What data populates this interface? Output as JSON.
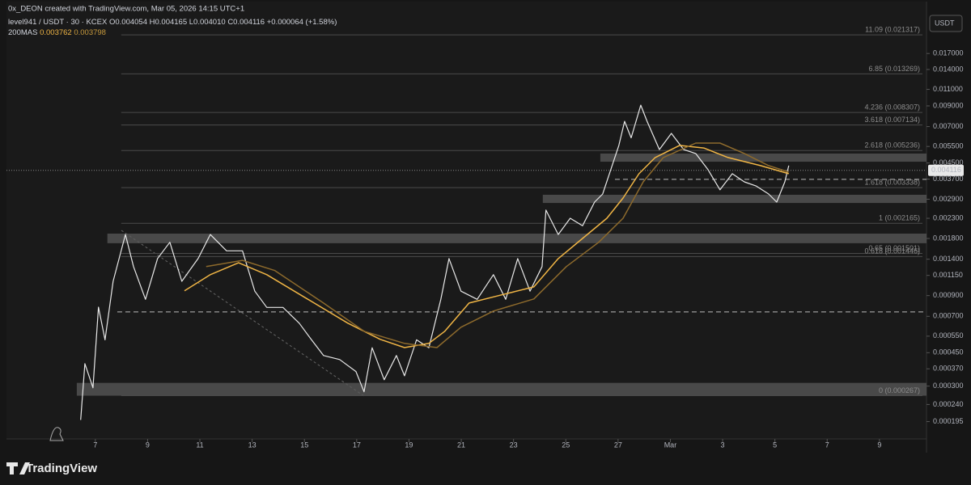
{
  "header": {
    "credit": "0x_DEON created with TradingView.com, Mar 05, 2026 14:15 UTC+1"
  },
  "legend": {
    "symbol": "level941 / USDT · 30 · KCEX",
    "ohlc": [
      "O0.004054",
      "H0.004165",
      "L0.004010",
      "C0.004116",
      "+0.000064 (+1.58%)"
    ],
    "indicator": "200MAS",
    "indicator_values": [
      "0.003762",
      "0.003798"
    ]
  },
  "chart_data": {
    "type": "line",
    "log_scale": true,
    "currency": "USDT",
    "xlim": [
      -3.4,
      31.8
    ],
    "ylim": [
      0.000158,
      0.0295
    ],
    "xticks": [
      {
        "value": 0,
        "label": "7"
      },
      {
        "value": 2,
        "label": "9"
      },
      {
        "value": 4,
        "label": "11"
      },
      {
        "value": 6,
        "label": "13"
      },
      {
        "value": 8,
        "label": "15"
      },
      {
        "value": 10,
        "label": "17"
      },
      {
        "value": 12,
        "label": "19"
      },
      {
        "value": 14,
        "label": "21"
      },
      {
        "value": 16,
        "label": "23"
      },
      {
        "value": 18,
        "label": "25"
      },
      {
        "value": 20,
        "label": "27"
      },
      {
        "value": 22,
        "label": "Mar"
      },
      {
        "value": 24,
        "label": "3"
      },
      {
        "value": 26,
        "label": "5"
      },
      {
        "value": 28,
        "label": "7"
      },
      {
        "value": 30,
        "label": "9"
      }
    ],
    "yticks": [
      {
        "value": 0.017,
        "label": "0.017000"
      },
      {
        "value": 0.014,
        "label": "0.014000"
      },
      {
        "value": 0.011,
        "label": "0.011000"
      },
      {
        "value": 0.009,
        "label": "0.009000"
      },
      {
        "value": 0.007,
        "label": "0.007000"
      },
      {
        "value": 0.0055,
        "label": "0.005500"
      },
      {
        "value": 0.0045,
        "label": "0.004500"
      },
      {
        "value": 0.0037,
        "label": "0.003700"
      },
      {
        "value": 0.0029,
        "label": "0.002900"
      },
      {
        "value": 0.0023,
        "label": "0.002300"
      },
      {
        "value": 0.0018,
        "label": "0.001800"
      },
      {
        "value": 0.0014,
        "label": "0.001400"
      },
      {
        "value": 0.00115,
        "label": "0.001150"
      },
      {
        "value": 0.0009,
        "label": "0.000900"
      },
      {
        "value": 0.0007,
        "label": "0.000700"
      },
      {
        "value": 0.00055,
        "label": "0.000550"
      },
      {
        "value": 0.00045,
        "label": "0.000450"
      },
      {
        "value": 0.00037,
        "label": "0.000370"
      },
      {
        "value": 0.0003,
        "label": "0.000300"
      },
      {
        "value": 0.00024,
        "label": "0.000240"
      },
      {
        "value": 0.000195,
        "label": "0.000195"
      }
    ],
    "last_price": 0.004116,
    "fib_start": 0.99,
    "fib_levels": [
      {
        "value": 0.021317,
        "label": "11.09 (0.021317)"
      },
      {
        "value": 0.013269,
        "label": "6.85 (0.013269)"
      },
      {
        "value": 0.008307,
        "label": "4.236 (0.008307)"
      },
      {
        "value": 0.007134,
        "label": "3.618 (0.007134)"
      },
      {
        "value": 0.005236,
        "label": "2.618 (0.005236)"
      },
      {
        "value": 0.003338,
        "label": "1.618 (0.003338)"
      },
      {
        "value": 0.002165,
        "label": "1 (0.002165)"
      },
      {
        "value": 0.001501,
        "label": "0.65 (0.001501)"
      },
      {
        "value": 0.001446,
        "label": "0.618 (0.001446)"
      },
      {
        "value": 0.000267,
        "label": "0 (0.000267)"
      }
    ],
    "zones": [
      {
        "from": 0.00457,
        "to": 0.00505,
        "start": 19.32
      },
      {
        "from": 0.00277,
        "to": 0.00306,
        "start": 17.12
      },
      {
        "from": 0.0017,
        "to": 0.00191,
        "start": 0.46
      },
      {
        "from": 0.000267,
        "to": 0.000312,
        "start": -0.71
      }
    ],
    "hlines": [
      {
        "value": 0.00369,
        "start": 19.88
      },
      {
        "value": 0.000738,
        "start": 0.84
      }
    ],
    "series": [
      {
        "color": "#e8e8e8",
        "x": [
          -0.56,
          -0.4,
          -0.09,
          0.12,
          0.37,
          0.68,
          1.15,
          1.46,
          1.92,
          2.38,
          2.85,
          3.31,
          3.93,
          4.4,
          5.02,
          5.63,
          6.1,
          6.56,
          7.18,
          7.8,
          8.27,
          8.73,
          9.35,
          9.97,
          10.28,
          10.59,
          11.05,
          11.52,
          11.83,
          12.29,
          12.76,
          13.22,
          13.53,
          13.99,
          14.61,
          15.23,
          15.7,
          16.16,
          16.63,
          17.09,
          17.24,
          17.71,
          18.17,
          18.64,
          19.1,
          19.41,
          19.72,
          20.03,
          20.25,
          20.5,
          20.87,
          21.11,
          21.58,
          22.04,
          22.51,
          22.97,
          23.44,
          23.9,
          24.37,
          24.83,
          25.29,
          25.76,
          26.07,
          26.38,
          26.53
        ],
        "values": [
          0.000199,
          0.000394,
          0.000294,
          0.000782,
          0.000526,
          0.00107,
          0.00189,
          0.00128,
          0.00086,
          0.00141,
          0.00172,
          0.00107,
          0.00141,
          0.00189,
          0.00155,
          0.00155,
          0.00095,
          0.00078,
          0.00078,
          0.000644,
          0.000526,
          0.000435,
          0.000414,
          0.000358,
          0.00028,
          0.000478,
          0.000324,
          0.000435,
          0.00034,
          0.000526,
          0.000478,
          0.00086,
          0.00141,
          0.00095,
          0.00086,
          0.00116,
          0.00086,
          0.00141,
          0.00095,
          0.00128,
          0.00254,
          0.00189,
          0.0023,
          0.0021,
          0.0028,
          0.00309,
          0.00415,
          0.00557,
          0.00746,
          0.00611,
          0.00908,
          0.00746,
          0.0053,
          0.00645,
          0.0053,
          0.00505,
          0.00415,
          0.00325,
          0.00395,
          0.00358,
          0.0034,
          0.00309,
          0.0028,
          0.00358,
          0.00436
        ]
      },
      {
        "color": "#f0b545",
        "x": [
          3.41,
          4.4,
          5.48,
          6.56,
          8.11,
          9.66,
          10.9,
          11.83,
          12.76,
          13.37,
          14.3,
          15.54,
          16.78,
          17.71,
          18.64,
          19.57,
          20.19,
          20.8,
          21.42,
          22.35,
          23.28,
          24.21,
          25.45,
          26.53
        ],
        "values": [
          0.000953,
          0.00116,
          0.00134,
          0.00116,
          0.000864,
          0.000644,
          0.000529,
          0.000479,
          0.000504,
          0.000584,
          0.000822,
          0.000908,
          0.001,
          0.00141,
          0.0018,
          0.0023,
          0.00294,
          0.00395,
          0.00481,
          0.00557,
          0.0054,
          0.00481,
          0.00436,
          0.00395
        ]
      },
      {
        "color": "#8d6a2c",
        "x": [
          4.24,
          5.63,
          6.87,
          8.73,
          10.28,
          11.83,
          13.07,
          13.99,
          15.23,
          16.78,
          18.02,
          19.26,
          20.19,
          20.96,
          21.73,
          22.97,
          23.9,
          24.83,
          25.76,
          26.53
        ],
        "values": [
          0.00128,
          0.00138,
          0.00122,
          0.000822,
          0.000584,
          0.000504,
          0.000479,
          0.000613,
          0.000746,
          0.000864,
          0.00128,
          0.00172,
          0.0023,
          0.00358,
          0.00481,
          0.00573,
          0.00573,
          0.00505,
          0.00436,
          0.00403
        ]
      }
    ]
  },
  "footer": {
    "brand": "TradingView"
  }
}
